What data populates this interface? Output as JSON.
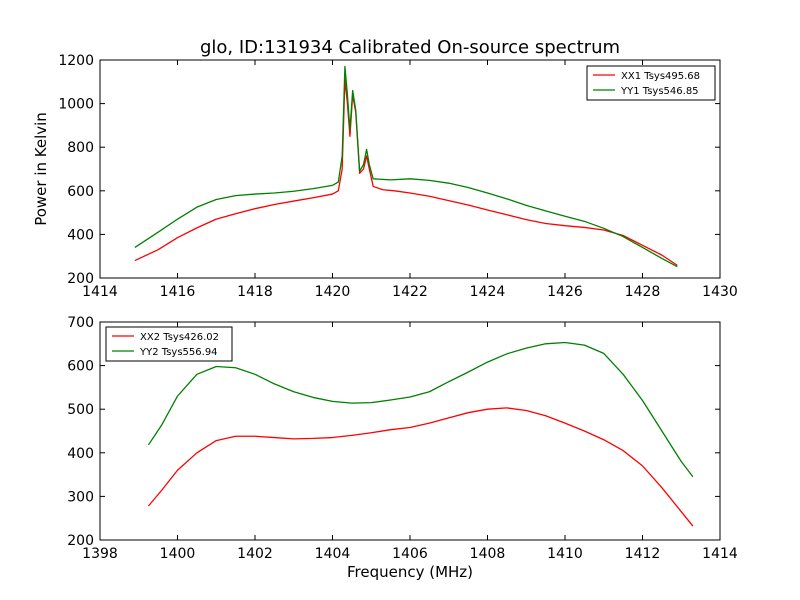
{
  "chart_data": [
    {
      "type": "line",
      "title": "glo, ID:131934 Calibrated On-source spectrum",
      "xlabel": "",
      "ylabel": "Power in Kelvin",
      "xlim": [
        1414,
        1430
      ],
      "ylim": [
        200,
        1200
      ],
      "xticks": [
        1414,
        1416,
        1418,
        1420,
        1422,
        1424,
        1426,
        1428,
        1430
      ],
      "yticks": [
        200,
        400,
        600,
        800,
        1000,
        1200
      ],
      "legend_position": "top-right",
      "grid": false,
      "series": [
        {
          "name": "XX1 Tsys495.68",
          "color": "#ff0000",
          "points": [
            [
              1414.9,
              280
            ],
            [
              1415.5,
              330
            ],
            [
              1416,
              385
            ],
            [
              1416.5,
              430
            ],
            [
              1417,
              470
            ],
            [
              1417.5,
              495
            ],
            [
              1418,
              518
            ],
            [
              1418.5,
              537
            ],
            [
              1419,
              553
            ],
            [
              1419.5,
              568
            ],
            [
              1420,
              585
            ],
            [
              1420.15,
              600
            ],
            [
              1420.25,
              700
            ],
            [
              1420.32,
              1110
            ],
            [
              1420.38,
              1010
            ],
            [
              1420.45,
              850
            ],
            [
              1420.52,
              1040
            ],
            [
              1420.6,
              960
            ],
            [
              1420.7,
              680
            ],
            [
              1420.8,
              700
            ],
            [
              1420.88,
              760
            ],
            [
              1420.95,
              700
            ],
            [
              1421.05,
              620
            ],
            [
              1421.3,
              605
            ],
            [
              1421.6,
              600
            ],
            [
              1422,
              590
            ],
            [
              1422.5,
              575
            ],
            [
              1423,
              555
            ],
            [
              1423.5,
              535
            ],
            [
              1424,
              512
            ],
            [
              1424.5,
              490
            ],
            [
              1425,
              468
            ],
            [
              1425.5,
              450
            ],
            [
              1426,
              440
            ],
            [
              1426.5,
              432
            ],
            [
              1427,
              420
            ],
            [
              1427.5,
              395
            ],
            [
              1428,
              350
            ],
            [
              1428.5,
              305
            ],
            [
              1428.9,
              258
            ]
          ]
        },
        {
          "name": "YY1 Tsys546.85",
          "color": "#008000",
          "points": [
            [
              1414.9,
              340
            ],
            [
              1415.5,
              410
            ],
            [
              1416,
              470
            ],
            [
              1416.5,
              525
            ],
            [
              1417,
              560
            ],
            [
              1417.5,
              578
            ],
            [
              1418,
              585
            ],
            [
              1418.5,
              590
            ],
            [
              1419,
              598
            ],
            [
              1419.5,
              610
            ],
            [
              1420,
              625
            ],
            [
              1420.15,
              640
            ],
            [
              1420.25,
              760
            ],
            [
              1420.32,
              1170
            ],
            [
              1420.38,
              1050
            ],
            [
              1420.45,
              880
            ],
            [
              1420.52,
              1060
            ],
            [
              1420.6,
              970
            ],
            [
              1420.7,
              690
            ],
            [
              1420.8,
              720
            ],
            [
              1420.88,
              790
            ],
            [
              1420.95,
              720
            ],
            [
              1421.05,
              655
            ],
            [
              1421.5,
              650
            ],
            [
              1422,
              655
            ],
            [
              1422.5,
              648
            ],
            [
              1423,
              635
            ],
            [
              1423.5,
              615
            ],
            [
              1424,
              590
            ],
            [
              1424.5,
              563
            ],
            [
              1425,
              533
            ],
            [
              1425.5,
              508
            ],
            [
              1426,
              483
            ],
            [
              1426.5,
              460
            ],
            [
              1427,
              428
            ],
            [
              1427.5,
              390
            ],
            [
              1428,
              340
            ],
            [
              1428.5,
              290
            ],
            [
              1428.9,
              252
            ]
          ]
        }
      ]
    },
    {
      "type": "line",
      "title": "",
      "xlabel": "Frequency (MHz)",
      "ylabel": "",
      "xlim": [
        1398,
        1414
      ],
      "ylim": [
        200,
        700
      ],
      "xticks": [
        1398,
        1400,
        1402,
        1404,
        1406,
        1408,
        1410,
        1412,
        1414
      ],
      "yticks": [
        200,
        300,
        400,
        500,
        600,
        700
      ],
      "legend_position": "top-left",
      "grid": false,
      "series": [
        {
          "name": "XX2 Tsys426.02",
          "color": "#ff0000",
          "points": [
            [
              1399.25,
              278
            ],
            [
              1399.6,
              315
            ],
            [
              1400,
              360
            ],
            [
              1400.5,
              400
            ],
            [
              1401,
              428
            ],
            [
              1401.5,
              438
            ],
            [
              1402,
              438
            ],
            [
              1402.5,
              435
            ],
            [
              1403,
              432
            ],
            [
              1403.5,
              433
            ],
            [
              1404,
              435
            ],
            [
              1404.5,
              440
            ],
            [
              1405,
              446
            ],
            [
              1405.5,
              453
            ],
            [
              1406,
              458
            ],
            [
              1406.5,
              468
            ],
            [
              1407,
              480
            ],
            [
              1407.5,
              492
            ],
            [
              1408,
              500
            ],
            [
              1408.5,
              503
            ],
            [
              1409,
              497
            ],
            [
              1409.5,
              485
            ],
            [
              1410,
              468
            ],
            [
              1410.5,
              450
            ],
            [
              1411,
              430
            ],
            [
              1411.5,
              405
            ],
            [
              1412,
              370
            ],
            [
              1412.5,
              320
            ],
            [
              1413,
              265
            ],
            [
              1413.3,
              232
            ]
          ]
        },
        {
          "name": "YY2 Tsys556.94",
          "color": "#008000",
          "points": [
            [
              1399.25,
              418
            ],
            [
              1399.6,
              465
            ],
            [
              1400,
              530
            ],
            [
              1400.5,
              580
            ],
            [
              1401,
              598
            ],
            [
              1401.5,
              595
            ],
            [
              1402,
              580
            ],
            [
              1402.5,
              558
            ],
            [
              1403,
              540
            ],
            [
              1403.5,
              527
            ],
            [
              1404,
              518
            ],
            [
              1404.5,
              514
            ],
            [
              1405,
              515
            ],
            [
              1405.5,
              521
            ],
            [
              1406,
              528
            ],
            [
              1406.5,
              540
            ],
            [
              1407,
              563
            ],
            [
              1407.5,
              585
            ],
            [
              1408,
              608
            ],
            [
              1408.5,
              627
            ],
            [
              1409,
              640
            ],
            [
              1409.5,
              650
            ],
            [
              1410,
              653
            ],
            [
              1410.5,
              647
            ],
            [
              1411,
              628
            ],
            [
              1411.5,
              580
            ],
            [
              1412,
              520
            ],
            [
              1412.5,
              450
            ],
            [
              1413,
              380
            ],
            [
              1413.3,
              345
            ]
          ]
        }
      ]
    }
  ]
}
